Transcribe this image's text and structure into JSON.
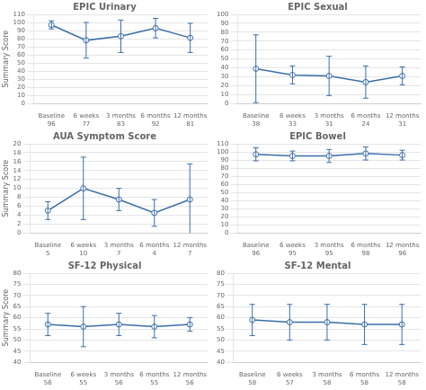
{
  "chart_data": [
    {
      "type": "line",
      "title": "EPIC Urinary",
      "ylabel": "Summary Score",
      "categories": [
        "Baseline",
        "6 weeks",
        "3 months",
        "6 months",
        "12 months"
      ],
      "values": [
        97,
        78,
        83,
        93,
        81
      ],
      "errors": [
        5,
        22,
        20,
        12,
        18
      ],
      "ns": [
        96,
        77,
        83,
        92,
        81
      ],
      "color": "#3a6ea8",
      "marker": "circle",
      "grid": true,
      "ylim": [
        0,
        110
      ],
      "yticks": [
        0,
        10,
        20,
        30,
        40,
        50,
        60,
        70,
        80,
        90,
        100,
        110
      ]
    },
    {
      "type": "line",
      "title": "EPIC Sexual",
      "categories": [
        "Baseline",
        "6 weeks",
        "3 months",
        "6 months",
        "12 months"
      ],
      "values": [
        39,
        32,
        31,
        24,
        31
      ],
      "errors": [
        38,
        10,
        22,
        18,
        10
      ],
      "ns": [
        38,
        33,
        31,
        24,
        31
      ],
      "color": "#3a6ea8",
      "marker": "circle",
      "grid": true,
      "ylim": [
        0,
        100
      ],
      "yticks": [
        0,
        10,
        20,
        30,
        40,
        50,
        60,
        70,
        80,
        90,
        100
      ]
    },
    {
      "type": "line",
      "title": "AUA Symptom Score",
      "ylabel": "Summary Score",
      "categories": [
        "Baseline",
        "6 weeks",
        "3 months",
        "6 months",
        "12 months"
      ],
      "values": [
        5,
        10,
        7.5,
        4.5,
        7.5
      ],
      "errors": [
        2,
        7,
        2.5,
        3,
        8
      ],
      "ns": [
        5,
        10,
        7,
        4,
        7
      ],
      "color": "#3a6ea8",
      "marker": "circle",
      "grid": true,
      "ylim": [
        0,
        20
      ],
      "yticks": [
        0,
        2,
        4,
        6,
        8,
        10,
        12,
        14,
        16,
        18,
        20
      ]
    },
    {
      "type": "line",
      "title": "EPIC Bowel",
      "categories": [
        "Baseline",
        "6 weeks",
        "3 months",
        "6 months",
        "12 months"
      ],
      "values": [
        97,
        95,
        95,
        98,
        96
      ],
      "errors": [
        8,
        6,
        8,
        8,
        6
      ],
      "ns": [
        96,
        95,
        95,
        98,
        96
      ],
      "color": "#3a6ea8",
      "marker": "circle",
      "grid": true,
      "ylim": [
        0,
        110
      ],
      "yticks": [
        0,
        10,
        20,
        30,
        40,
        50,
        60,
        70,
        80,
        90,
        100,
        110
      ]
    },
    {
      "type": "line",
      "title": "SF-12 Physical",
      "ylabel": "Summary Score",
      "categories": [
        "Baseline",
        "6 weeks",
        "3 months",
        "6 months",
        "12 months"
      ],
      "values": [
        57,
        56,
        57,
        56,
        57
      ],
      "errors": [
        5,
        9,
        5,
        5,
        3
      ],
      "ns": [
        56,
        55,
        56,
        55,
        56
      ],
      "color": "#3a6ea8",
      "marker": "circle",
      "grid": true,
      "ylim": [
        40,
        80
      ],
      "yticks": [
        40,
        45,
        50,
        55,
        60,
        65,
        70,
        75,
        80
      ]
    },
    {
      "type": "line",
      "title": "SF-12 Mental",
      "categories": [
        "Baseline",
        "6 weeks",
        "3 months",
        "6 months",
        "12 months"
      ],
      "values": [
        59,
        58,
        58,
        57,
        57
      ],
      "errors": [
        7,
        8,
        8,
        9,
        9
      ],
      "ns": [
        58,
        57,
        58,
        58,
        58
      ],
      "color": "#3a6ea8",
      "marker": "circle",
      "grid": true,
      "ylim": [
        40,
        80
      ],
      "yticks": [
        40,
        45,
        50,
        55,
        60,
        65,
        70,
        75,
        80
      ]
    }
  ]
}
